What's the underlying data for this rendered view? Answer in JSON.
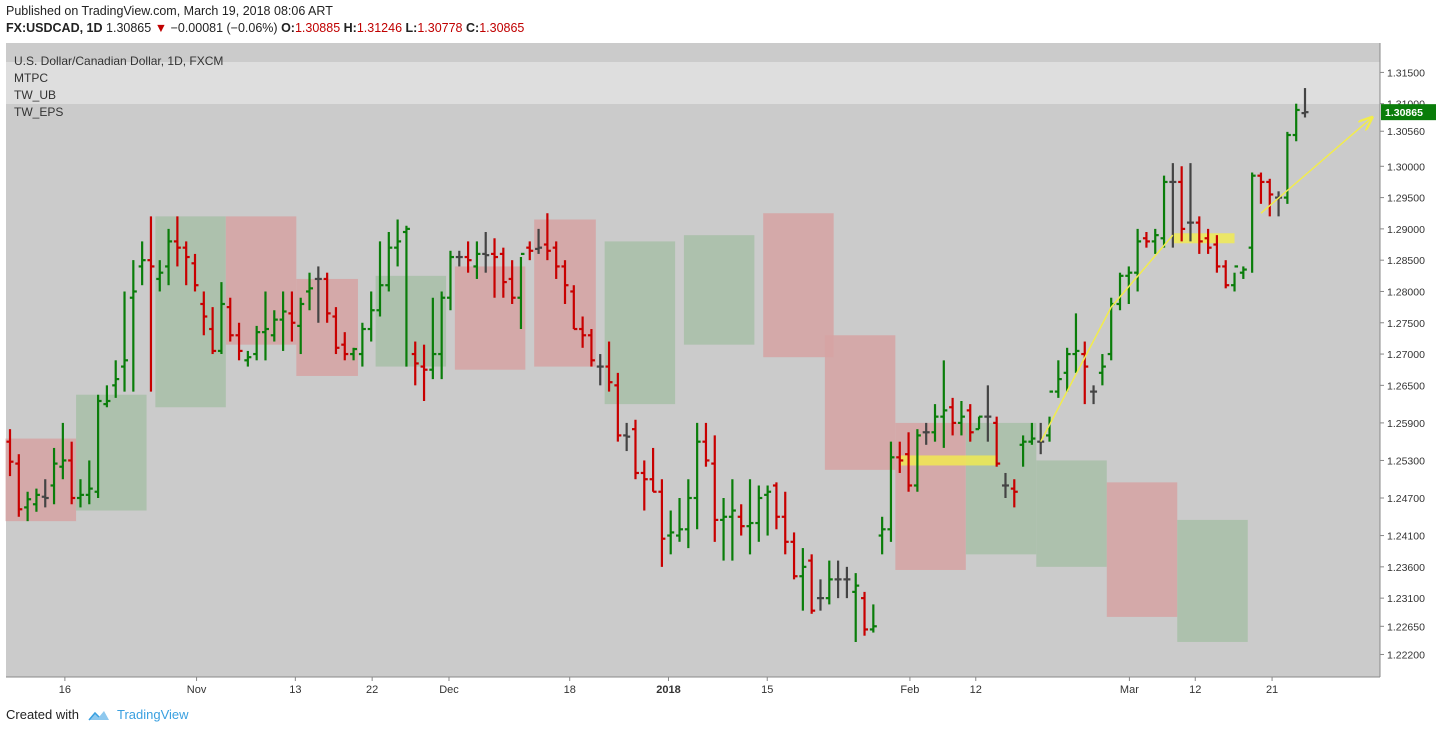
{
  "header": {
    "published": "Published on TradingView.com, March 19, 2018 08:06 ART",
    "symbol": "FX:USDCAD, 1D",
    "last": "1.30865",
    "change": "−0.00081 (−0.06%)",
    "o_label": "O:",
    "o": "1.30885",
    "h_label": "H:",
    "h": "1.31246",
    "l_label": "L:",
    "l": "1.30778",
    "c_label": "C:",
    "c": "1.30865"
  },
  "legend": {
    "title": "U.S. Dollar/Canadian Dollar, 1D, FXCM",
    "indicators": [
      "MTPC",
      "TW_UB",
      "TW_EPS"
    ]
  },
  "footer": {
    "created": "Created with",
    "brand": "TradingView",
    "logo_icon": "tradingview-cloud-icon"
  },
  "colors": {
    "up": "#0a7d0a",
    "down": "#c80000",
    "neutral": "#444444",
    "green_box": "#a8bfa8",
    "red_box": "#d6a3a3",
    "highlight": "#f2ec4c",
    "plot_bg": "#cbcbcb",
    "price_tag": "#0a7d0a"
  },
  "chart_data": {
    "type": "ohlc-bar",
    "y_ticks": [
      1.315,
      1.31,
      1.3056,
      1.3,
      1.295,
      1.29,
      1.285,
      1.28,
      1.275,
      1.27,
      1.265,
      1.259,
      1.253,
      1.247,
      1.241,
      1.236,
      1.231,
      1.2265,
      1.222
    ],
    "y_tick_labels": [
      "1.31500",
      "1.31000",
      "1.30560",
      "1.30000",
      "1.29500",
      "1.29000",
      "1.28500",
      "1.28000",
      "1.27500",
      "1.27000",
      "1.26500",
      "1.25900",
      "1.25300",
      "1.24700",
      "1.24100",
      "1.23600",
      "1.23100",
      "1.22650",
      "1.22200"
    ],
    "ylim": [
      1.2184,
      1.3197
    ],
    "current_price": 1.30865,
    "current_price_label": "1.30865",
    "x_ticks": [
      {
        "label": "16",
        "i": 5
      },
      {
        "label": "Nov",
        "i": 17
      },
      {
        "label": "13",
        "i": 26
      },
      {
        "label": "22",
        "i": 33
      },
      {
        "label": "Dec",
        "i": 40
      },
      {
        "label": "18",
        "i": 51
      },
      {
        "label": "2018",
        "i": 60,
        "bold": true
      },
      {
        "label": "15",
        "i": 69
      },
      {
        "label": "Feb",
        "i": 82
      },
      {
        "label": "12",
        "i": 88
      },
      {
        "label": "Mar",
        "i": 102
      },
      {
        "label": "12",
        "i": 108
      },
      {
        "label": "21",
        "i": 115
      }
    ],
    "x_index_range": [
      0,
      118
    ],
    "bars": [
      [
        1.256,
        1.258,
        1.2505,
        1.2528
      ],
      [
        1.2525,
        1.254,
        1.244,
        1.2452
      ],
      [
        1.2455,
        1.248,
        1.2433,
        1.2468
      ],
      [
        1.246,
        1.2485,
        1.2448,
        1.2475
      ],
      [
        1.2472,
        1.25,
        1.2455,
        1.247
      ],
      [
        1.249,
        1.255,
        1.246,
        1.2525
      ],
      [
        1.252,
        1.259,
        1.25,
        1.253
      ],
      [
        1.253,
        1.256,
        1.246,
        1.247
      ],
      [
        1.247,
        1.25,
        1.2455,
        1.2475
      ],
      [
        1.2475,
        1.253,
        1.246,
        1.2485
      ],
      [
        1.248,
        1.2635,
        1.247,
        1.2625
      ],
      [
        1.262,
        1.265,
        1.2615,
        1.2625
      ],
      [
        1.265,
        1.269,
        1.263,
        1.266
      ],
      [
        1.268,
        1.28,
        1.264,
        1.269
      ],
      [
        1.279,
        1.285,
        1.264,
        1.28
      ],
      [
        1.284,
        1.288,
        1.281,
        1.285
      ],
      [
        1.285,
        1.292,
        1.264,
        1.284
      ],
      [
        1.282,
        1.285,
        1.28,
        1.283
      ],
      [
        1.284,
        1.29,
        1.281,
        1.288
      ],
      [
        1.288,
        1.292,
        1.284,
        1.287
      ],
      [
        1.287,
        1.288,
        1.281,
        1.2855
      ],
      [
        1.2845,
        1.286,
        1.28,
        1.281
      ],
      [
        1.278,
        1.28,
        1.273,
        1.276
      ],
      [
        1.274,
        1.2775,
        1.27,
        1.2705
      ],
      [
        1.2705,
        1.2815,
        1.27,
        1.278
      ],
      [
        1.2775,
        1.279,
        1.272,
        1.273
      ],
      [
        1.273,
        1.275,
        1.269,
        1.2705
      ],
      [
        1.269,
        1.2705,
        1.268,
        1.2695
      ],
      [
        1.27,
        1.2745,
        1.269,
        1.2735
      ],
      [
        1.2735,
        1.28,
        1.269,
        1.274
      ],
      [
        1.273,
        1.277,
        1.272,
        1.2755
      ],
      [
        1.2755,
        1.28,
        1.2705,
        1.2768
      ],
      [
        1.2765,
        1.28,
        1.272,
        1.275
      ],
      [
        1.2745,
        1.279,
        1.27,
        1.278
      ],
      [
        1.28,
        1.283,
        1.277,
        1.2805
      ],
      [
        1.282,
        1.284,
        1.275,
        1.282
      ],
      [
        1.282,
        1.283,
        1.275,
        1.2765
      ],
      [
        1.276,
        1.2775,
        1.27,
        1.271
      ],
      [
        1.2715,
        1.2735,
        1.269,
        1.27
      ],
      [
        1.27,
        1.271,
        1.269,
        1.2708
      ],
      [
        1.27,
        1.275,
        1.268,
        1.274
      ],
      [
        1.274,
        1.28,
        1.272,
        1.277
      ],
      [
        1.277,
        1.288,
        1.276,
        1.281
      ],
      [
        1.281,
        1.2895,
        1.28,
        1.287
      ],
      [
        1.287,
        1.2915,
        1.284,
        1.288
      ],
      [
        1.2895,
        1.2905,
        1.268,
        1.29
      ],
      [
        1.27,
        1.272,
        1.265,
        1.2685
      ],
      [
        1.268,
        1.2715,
        1.2625,
        1.2675
      ],
      [
        1.2675,
        1.279,
        1.266,
        1.27
      ],
      [
        1.27,
        1.28,
        1.266,
        1.279
      ],
      [
        1.279,
        1.2865,
        1.277,
        1.2855
      ],
      [
        1.2855,
        1.2865,
        1.284,
        1.2855
      ],
      [
        1.2855,
        1.288,
        1.283,
        1.285
      ],
      [
        1.284,
        1.288,
        1.282,
        1.286
      ],
      [
        1.286,
        1.2895,
        1.283,
        1.2858
      ],
      [
        1.286,
        1.2885,
        1.279,
        1.2855
      ],
      [
        1.286,
        1.287,
        1.279,
        1.2815
      ],
      [
        1.282,
        1.285,
        1.278,
        1.279
      ],
      [
        1.279,
        1.2855,
        1.274,
        1.286
      ],
      [
        1.287,
        1.288,
        1.285,
        1.2865
      ],
      [
        1.2868,
        1.29,
        1.286,
        1.287
      ],
      [
        1.2875,
        1.2925,
        1.285,
        1.2865
      ],
      [
        1.287,
        1.288,
        1.282,
        1.284
      ],
      [
        1.284,
        1.285,
        1.278,
        1.281
      ],
      [
        1.28,
        1.281,
        1.274,
        1.274
      ],
      [
        1.274,
        1.276,
        1.271,
        1.273
      ],
      [
        1.273,
        1.274,
        1.268,
        1.269
      ],
      [
        1.268,
        1.27,
        1.265,
        1.268
      ],
      [
        1.268,
        1.272,
        1.264,
        1.2655
      ],
      [
        1.265,
        1.267,
        1.256,
        1.257
      ],
      [
        1.257,
        1.259,
        1.2545,
        1.2568
      ],
      [
        1.258,
        1.2595,
        1.25,
        1.251
      ],
      [
        1.251,
        1.253,
        1.245,
        1.25
      ],
      [
        1.25,
        1.255,
        1.248,
        1.248
      ],
      [
        1.248,
        1.25,
        1.236,
        1.2405
      ],
      [
        1.241,
        1.245,
        1.238,
        1.2415
      ],
      [
        1.241,
        1.247,
        1.24,
        1.242
      ],
      [
        1.242,
        1.25,
        1.239,
        1.247
      ],
      [
        1.247,
        1.259,
        1.242,
        1.256
      ],
      [
        1.256,
        1.259,
        1.252,
        1.253
      ],
      [
        1.2525,
        1.257,
        1.24,
        1.2435
      ],
      [
        1.2435,
        1.247,
        1.237,
        1.244
      ],
      [
        1.244,
        1.25,
        1.237,
        1.245
      ],
      [
        1.244,
        1.246,
        1.241,
        1.2425
      ],
      [
        1.2425,
        1.25,
        1.238,
        1.243
      ],
      [
        1.243,
        1.249,
        1.24,
        1.247
      ],
      [
        1.2475,
        1.249,
        1.241,
        1.248
      ],
      [
        1.249,
        1.2495,
        1.242,
        1.244
      ],
      [
        1.244,
        1.248,
        1.238,
        1.24
      ],
      [
        1.24,
        1.2415,
        1.234,
        1.2345
      ],
      [
        1.2345,
        1.239,
        1.229,
        1.236
      ],
      [
        1.237,
        1.238,
        1.2285,
        1.229
      ],
      [
        1.231,
        1.234,
        1.229,
        1.231
      ],
      [
        1.231,
        1.237,
        1.23,
        1.234
      ],
      [
        1.234,
        1.237,
        1.231,
        1.234
      ],
      [
        1.234,
        1.236,
        1.231,
        1.234
      ],
      [
        1.232,
        1.235,
        1.224,
        1.233
      ],
      [
        1.231,
        1.232,
        1.225,
        1.226
      ],
      [
        1.226,
        1.23,
        1.2255,
        1.2265
      ],
      [
        1.241,
        1.244,
        1.238,
        1.242
      ]
    ],
    "bars_tail": [
      [
        1.242,
        1.256,
        1.24,
        1.2535
      ],
      [
        1.2535,
        1.256,
        1.251,
        1.253
      ],
      [
        1.254,
        1.2575,
        1.248,
        1.249
      ],
      [
        1.249,
        1.258,
        1.248,
        1.257
      ],
      [
        1.2575,
        1.259,
        1.2555,
        1.2575
      ],
      [
        1.2575,
        1.262,
        1.256,
        1.26
      ],
      [
        1.26,
        1.269,
        1.255,
        1.261
      ],
      [
        1.2615,
        1.263,
        1.257,
        1.259
      ],
      [
        1.259,
        1.2625,
        1.257,
        1.26
      ],
      [
        1.261,
        1.262,
        1.256,
        1.2575
      ],
      [
        1.258,
        1.26,
        1.258,
        1.26
      ],
      [
        1.26,
        1.265,
        1.256,
        1.26
      ],
      [
        1.259,
        1.26,
        1.252,
        1.2525
      ],
      [
        1.249,
        1.251,
        1.247,
        1.249
      ],
      [
        1.2485,
        1.25,
        1.2455,
        1.248
      ],
      [
        1.2555,
        1.257,
        1.252,
        1.256
      ],
      [
        1.256,
        1.259,
        1.2555,
        1.2565
      ],
      [
        1.256,
        1.259,
        1.254,
        1.256
      ],
      [
        1.257,
        1.26,
        1.256,
        1.264
      ],
      [
        1.264,
        1.269,
        1.263,
        1.266
      ],
      [
        1.267,
        1.271,
        1.264,
        1.27
      ],
      [
        1.27,
        1.2765,
        1.267,
        1.2705
      ],
      [
        1.27,
        1.272,
        1.262,
        1.268
      ],
      [
        1.264,
        1.265,
        1.262,
        1.264
      ],
      [
        1.267,
        1.27,
        1.265,
        1.268
      ],
      [
        1.27,
        1.279,
        1.269,
        1.278
      ],
      [
        1.278,
        1.283,
        1.277,
        1.2825
      ],
      [
        1.2825,
        1.284,
        1.278,
        1.283
      ],
      [
        1.283,
        1.29,
        1.28,
        1.288
      ],
      [
        1.2885,
        1.2895,
        1.287,
        1.288
      ],
      [
        1.288,
        1.29,
        1.286,
        1.289
      ],
      [
        1.2885,
        1.2985,
        1.287,
        1.2975
      ],
      [
        1.2975,
        1.3005,
        1.287,
        1.2975
      ],
      [
        1.2975,
        1.3,
        1.288,
        1.29
      ],
      [
        1.291,
        1.3005,
        1.288,
        1.291
      ],
      [
        1.291,
        1.292,
        1.286,
        1.288
      ],
      [
        1.2885,
        1.29,
        1.286,
        1.287
      ],
      [
        1.2875,
        1.289,
        1.283,
        1.284
      ],
      [
        1.284,
        1.285,
        1.2805,
        1.281
      ],
      [
        1.281,
        1.283,
        1.28,
        1.284
      ],
      [
        1.283,
        1.284,
        1.282,
        1.2835
      ],
      [
        1.287,
        1.299,
        1.283,
        1.2985
      ],
      [
        1.2985,
        1.299,
        1.294,
        1.2975
      ],
      [
        1.2975,
        1.298,
        1.292,
        1.2955
      ],
      [
        1.295,
        1.296,
        1.292,
        1.295
      ],
      [
        1.295,
        1.3055,
        1.294,
        1.305
      ],
      [
        1.305,
        1.31,
        1.304,
        1.309
      ],
      [
        1.3085,
        1.3125,
        1.3078,
        1.30865
      ]
    ],
    "boxes": [
      {
        "i0": 0,
        "i1": 7,
        "ymin": 1.2433,
        "ymax": 1.2565,
        "color": "red"
      },
      {
        "i0": 8,
        "i1": 15,
        "ymin": 1.245,
        "ymax": 1.2635,
        "color": "green"
      },
      {
        "i0": 17,
        "i1": 24,
        "ymin": 1.2615,
        "ymax": 1.292,
        "color": "green"
      },
      {
        "i0": 25,
        "i1": 32,
        "ymin": 1.2715,
        "ymax": 1.292,
        "color": "red"
      },
      {
        "i0": 33,
        "i1": 39,
        "ymin": 1.2665,
        "ymax": 1.282,
        "color": "red"
      },
      {
        "i0": 42,
        "i1": 49,
        "ymin": 1.268,
        "ymax": 1.2825,
        "color": "green"
      },
      {
        "i0": 51,
        "i1": 58,
        "ymin": 1.2675,
        "ymax": 1.284,
        "color": "red"
      },
      {
        "i0": 60,
        "i1": 66,
        "ymin": 1.268,
        "ymax": 1.2915,
        "color": "red"
      },
      {
        "i0": 68,
        "i1": 75,
        "ymin": 1.262,
        "ymax": 1.288,
        "color": "green"
      },
      {
        "i0": 77,
        "i1": 84,
        "ymin": 1.2715,
        "ymax": 1.289,
        "color": "green"
      },
      {
        "i0": 86,
        "i1": 93,
        "ymin": 1.2695,
        "ymax": 1.2925,
        "color": "red"
      },
      {
        "i0": 93,
        "i1": 100,
        "ymin": 1.2515,
        "ymax": 1.273,
        "color": "red"
      },
      {
        "i0": 101,
        "i1": 108,
        "ymin": 1.2355,
        "ymax": 1.259,
        "color": "red"
      },
      {
        "i0": 109,
        "i1": 116,
        "ymin": 1.238,
        "ymax": 1.259,
        "color": "green"
      },
      {
        "i0": 117,
        "i1": 124,
        "ymin": 1.236,
        "ymax": 1.253,
        "color": "green"
      },
      {
        "i0": 125,
        "i1": 132,
        "ymin": 1.228,
        "ymax": 1.2495,
        "color": "red"
      },
      {
        "i0": 133,
        "i1": 140,
        "ymin": 1.224,
        "ymax": 1.2435,
        "color": "green"
      }
    ]
  }
}
